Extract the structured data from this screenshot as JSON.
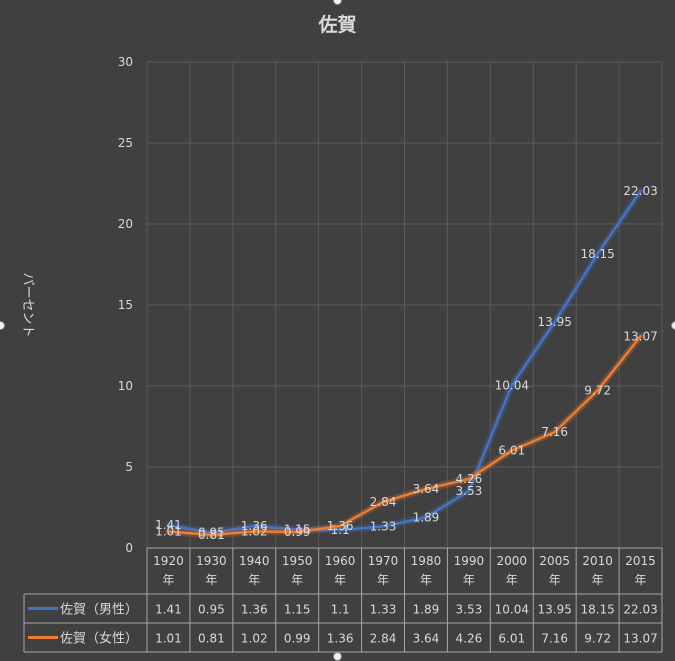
{
  "chart_data": {
    "type": "line",
    "title": "佐賀",
    "ylabel": "パーセント",
    "xlabel": "",
    "ylim": [
      0,
      30
    ],
    "yticks": [
      0,
      5,
      10,
      15,
      20,
      25,
      30
    ],
    "grid": true,
    "legend": "data-table",
    "categories": [
      "1920年",
      "1930年",
      "1940年",
      "1950年",
      "1960年",
      "1970年",
      "1980年",
      "1990年",
      "2000年",
      "2005年",
      "2010年",
      "2015年"
    ],
    "series": [
      {
        "name": "佐賀（男性）",
        "color": "#4472c4",
        "values": [
          1.41,
          0.95,
          1.36,
          1.15,
          1.1,
          1.33,
          1.89,
          3.53,
          10.04,
          13.95,
          18.15,
          22.03
        ]
      },
      {
        "name": "佐賀（女性）",
        "color": "#ed7d31",
        "values": [
          1.01,
          0.81,
          1.02,
          0.99,
          1.36,
          2.84,
          3.64,
          4.26,
          6.01,
          7.16,
          9.72,
          13.07
        ]
      }
    ]
  }
}
